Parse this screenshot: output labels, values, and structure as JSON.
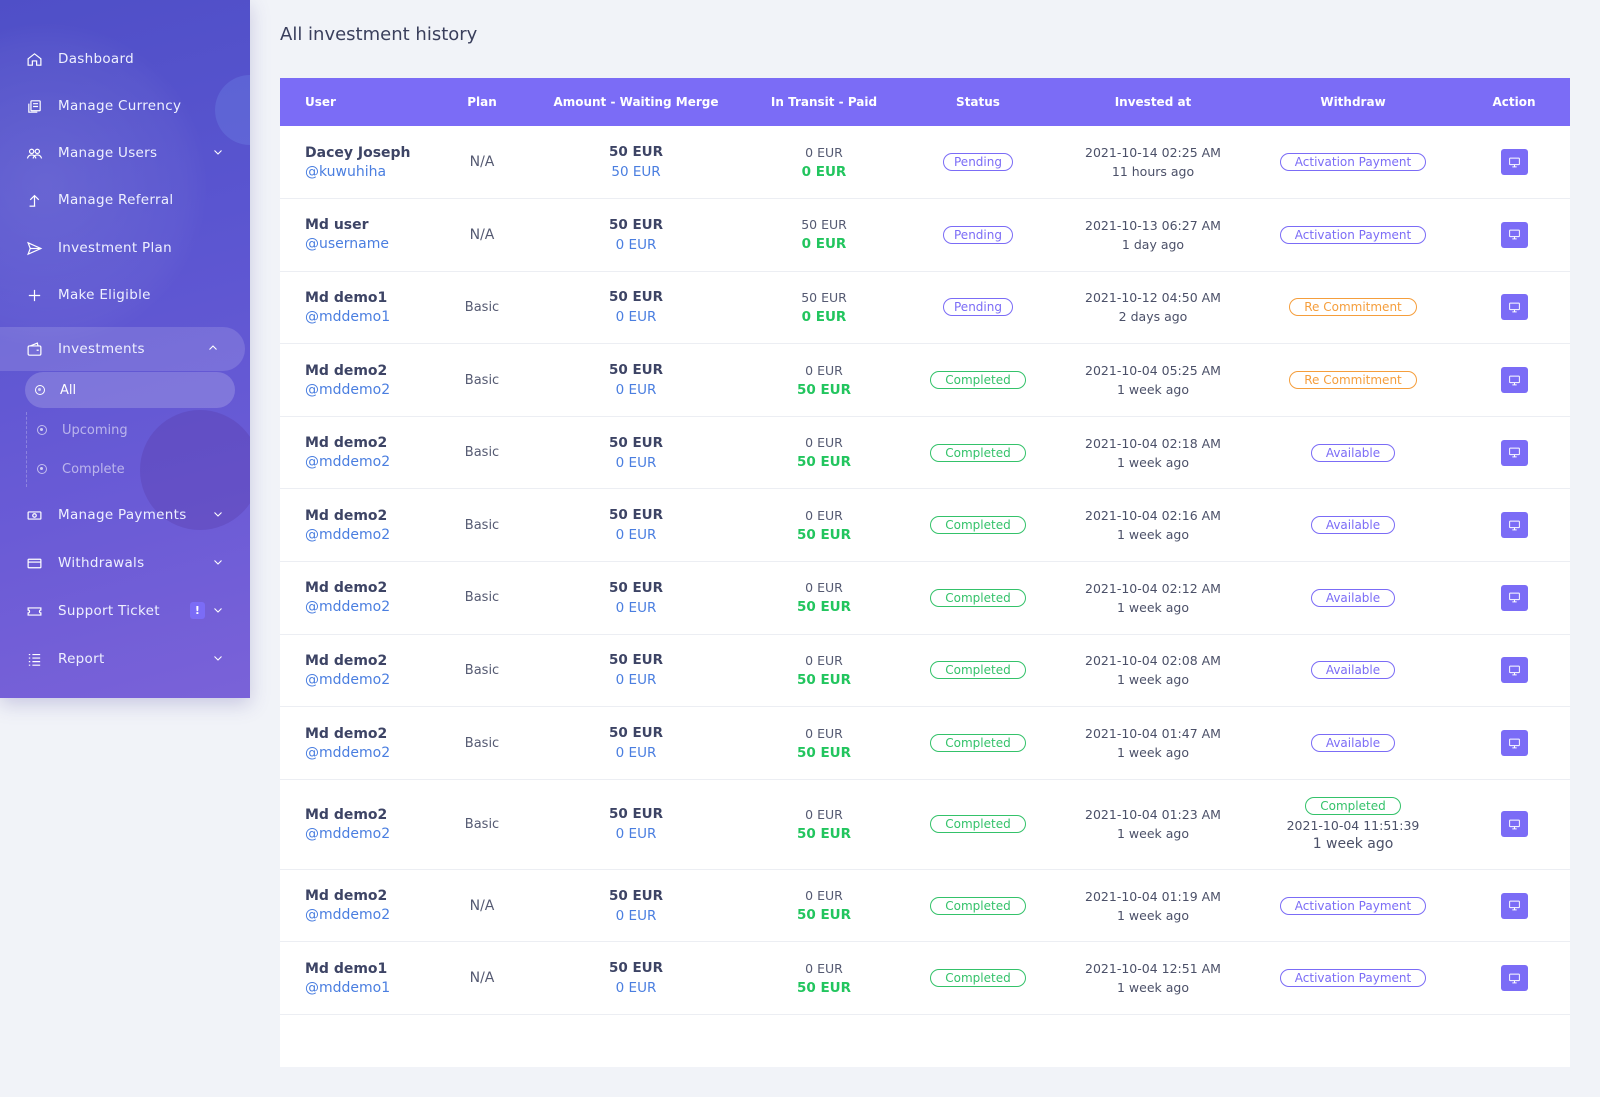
{
  "sidebar": {
    "items": [
      {
        "label": "Dashboard",
        "icon": "home-icon"
      },
      {
        "label": "Manage Currency",
        "icon": "money-stack-icon"
      },
      {
        "label": "Manage Users",
        "icon": "users-icon"
      },
      {
        "label": "Manage Referral",
        "icon": "arrow-up-icon"
      },
      {
        "label": "Investment Plan",
        "icon": "send-icon"
      },
      {
        "label": "Make Eligible",
        "icon": "plus-icon"
      },
      {
        "label": "Investments",
        "icon": "wallet-icon"
      },
      {
        "label": "Manage Payments",
        "icon": "cash-icon"
      },
      {
        "label": "Withdrawals",
        "icon": "card-icon"
      },
      {
        "label": "Support Ticket",
        "icon": "ticket-icon",
        "badge": "!"
      },
      {
        "label": "Report",
        "icon": "list-icon"
      }
    ],
    "sub_items": [
      {
        "label": "All"
      },
      {
        "label": "Upcoming"
      },
      {
        "label": "Complete"
      }
    ]
  },
  "page": {
    "title": "All investment history"
  },
  "table": {
    "headers": [
      "User",
      "Plan",
      "Amount - Waiting Merge",
      "In Transit - Paid",
      "Status",
      "Invested at",
      "Withdraw",
      "Action"
    ],
    "rows": [
      {
        "name": "Dacey Joseph",
        "handle": "@kuwuhiha",
        "plan": "N/A",
        "amount": "50 EUR",
        "waiting": "50 EUR",
        "transit": "0 EUR",
        "paid": "0 EUR",
        "status": "Pending",
        "invested": "2021-10-14 02:25 AM",
        "ago": "11 hours ago",
        "withdraw": "Activation Payment"
      },
      {
        "name": "Md user",
        "handle": "@username",
        "plan": "N/A",
        "amount": "50 EUR",
        "waiting": "0 EUR",
        "transit": "50 EUR",
        "paid": "0 EUR",
        "status": "Pending",
        "invested": "2021-10-13 06:27 AM",
        "ago": "1 day ago",
        "withdraw": "Activation Payment"
      },
      {
        "name": "Md demo1",
        "handle": "@mddemo1",
        "plan": "Basic",
        "amount": "50 EUR",
        "waiting": "0 EUR",
        "transit": "50 EUR",
        "paid": "0 EUR",
        "status": "Pending",
        "invested": "2021-10-12 04:50 AM",
        "ago": "2 days ago",
        "withdraw": "Re Commitment"
      },
      {
        "name": "Md demo2",
        "handle": "@mddemo2",
        "plan": "Basic",
        "amount": "50 EUR",
        "waiting": "0 EUR",
        "transit": "0 EUR",
        "paid": "50 EUR",
        "status": "Completed",
        "invested": "2021-10-04 05:25 AM",
        "ago": "1 week ago",
        "withdraw": "Re Commitment"
      },
      {
        "name": "Md demo2",
        "handle": "@mddemo2",
        "plan": "Basic",
        "amount": "50 EUR",
        "waiting": "0 EUR",
        "transit": "0 EUR",
        "paid": "50 EUR",
        "status": "Completed",
        "invested": "2021-10-04 02:18 AM",
        "ago": "1 week ago",
        "withdraw": "Available"
      },
      {
        "name": "Md demo2",
        "handle": "@mddemo2",
        "plan": "Basic",
        "amount": "50 EUR",
        "waiting": "0 EUR",
        "transit": "0 EUR",
        "paid": "50 EUR",
        "status": "Completed",
        "invested": "2021-10-04 02:16 AM",
        "ago": "1 week ago",
        "withdraw": "Available"
      },
      {
        "name": "Md demo2",
        "handle": "@mddemo2",
        "plan": "Basic",
        "amount": "50 EUR",
        "waiting": "0 EUR",
        "transit": "0 EUR",
        "paid": "50 EUR",
        "status": "Completed",
        "invested": "2021-10-04 02:12 AM",
        "ago": "1 week ago",
        "withdraw": "Available"
      },
      {
        "name": "Md demo2",
        "handle": "@mddemo2",
        "plan": "Basic",
        "amount": "50 EUR",
        "waiting": "0 EUR",
        "transit": "0 EUR",
        "paid": "50 EUR",
        "status": "Completed",
        "invested": "2021-10-04 02:08 AM",
        "ago": "1 week ago",
        "withdraw": "Available"
      },
      {
        "name": "Md demo2",
        "handle": "@mddemo2",
        "plan": "Basic",
        "amount": "50 EUR",
        "waiting": "0 EUR",
        "transit": "0 EUR",
        "paid": "50 EUR",
        "status": "Completed",
        "invested": "2021-10-04 01:47 AM",
        "ago": "1 week ago",
        "withdraw": "Available"
      },
      {
        "name": "Md demo2",
        "handle": "@mddemo2",
        "plan": "Basic",
        "amount": "50 EUR",
        "waiting": "0 EUR",
        "transit": "0 EUR",
        "paid": "50 EUR",
        "status": "Completed",
        "invested": "2021-10-04 01:23 AM",
        "ago": "1 week ago",
        "withdraw": "Completed",
        "withdraw_date": "2021-10-04 11:51:39",
        "withdraw_ago": "1 week ago"
      },
      {
        "name": "Md demo2",
        "handle": "@mddemo2",
        "plan": "N/A",
        "amount": "50 EUR",
        "waiting": "0 EUR",
        "transit": "0 EUR",
        "paid": "50 EUR",
        "status": "Completed",
        "invested": "2021-10-04 01:19 AM",
        "ago": "1 week ago",
        "withdraw": "Activation Payment"
      },
      {
        "name": "Md demo1",
        "handle": "@mddemo1",
        "plan": "N/A",
        "amount": "50 EUR",
        "waiting": "0 EUR",
        "transit": "0 EUR",
        "paid": "50 EUR",
        "status": "Completed",
        "invested": "2021-10-04 12:51 AM",
        "ago": "1 week ago",
        "withdraw": "Activation Payment"
      }
    ]
  },
  "colors": {
    "accent": "#7b6cf6",
    "link": "#4a7ee0",
    "success": "#22c55e",
    "warning": "#f59e3c"
  }
}
